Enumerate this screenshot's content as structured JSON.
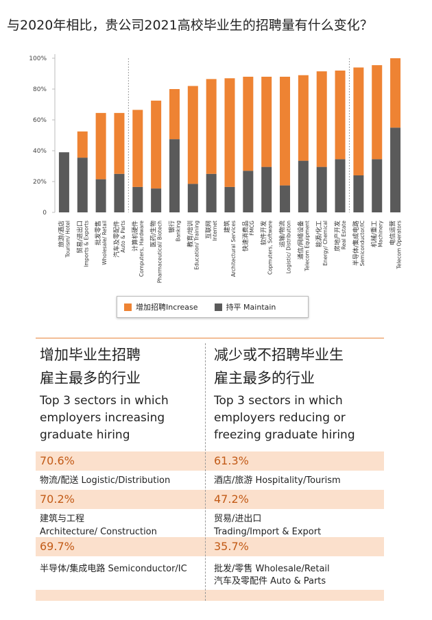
{
  "title": "与2020年相比，贵公司2021高校毕业生的招聘量有什么变化？",
  "legend": {
    "increase": "增加招聘Increase",
    "maintain": "持平 Maintain"
  },
  "colors": {
    "increase": "#ee8333",
    "maintain": "#5a5a5a",
    "accent": "#e8833a",
    "band": "#fbe0cc"
  },
  "chart_data": {
    "type": "bar",
    "stacked": true,
    "ylim": [
      0,
      100
    ],
    "yticks": [
      "0",
      "20%",
      "40%",
      "60%",
      "80%",
      "100%"
    ],
    "categories": [
      [
        "旅游/酒店",
        "Tourism/ Hotel"
      ],
      [
        "贸易/进出口",
        "Imports & Exports"
      ],
      [
        "批发零售",
        "Wholesale/ Retail"
      ],
      [
        "汽车及零配件",
        "Auto & Parts"
      ],
      [
        "计算机硬件",
        "Computers, Hardware"
      ],
      [
        "医药/生物",
        "Pharmaceutical/ Biotech"
      ],
      [
        "银行",
        "Banking"
      ],
      [
        "教育/培训",
        "Education/ Training"
      ],
      [
        "互联网",
        "Internet"
      ],
      [
        "建筑",
        "Architectural Services"
      ],
      [
        "快速消费品",
        "FMCG"
      ],
      [
        "软件开发",
        "Copmuters, Software"
      ],
      [
        "运输/物流",
        "Logistic/ Distribution"
      ],
      [
        "通信/网络设备",
        "Telecom Equipment"
      ],
      [
        "能源/化工",
        "Energy/ Chemical"
      ],
      [
        "房地产开发",
        "Real Estate"
      ],
      [
        "半导体/集成电路",
        "Semiconductor/IC"
      ],
      [
        "机械/重工",
        "Machinery"
      ],
      [
        "电信运营",
        "Telecom Operators"
      ]
    ],
    "series": [
      {
        "name": "持平 Maintain",
        "values": [
          39,
          35.5,
          21.5,
          25,
          16.5,
          15.5,
          47.5,
          18.5,
          25,
          16.5,
          27,
          29.5,
          17.5,
          33.5,
          29.5,
          34.5,
          24,
          34.5,
          55
        ]
      },
      {
        "name": "增加招聘Increase",
        "values": [
          0,
          17,
          43,
          39.5,
          50,
          57,
          32.5,
          63.5,
          61.5,
          70.5,
          61,
          58.5,
          70.5,
          55.5,
          62,
          57.5,
          70,
          61,
          45
        ]
      }
    ],
    "group_separators_after": [
      3,
      15
    ]
  },
  "panel": {
    "left": {
      "heading_cn": [
        "增加毕业生招聘",
        "雇主最多的行业"
      ],
      "heading_en": [
        "Top 3 sectors in which",
        "employers increasing",
        "graduate hiring"
      ],
      "items": [
        {
          "pct": "70.6%",
          "lines": [
            "物流/配送  Logistic/Distribution"
          ]
        },
        {
          "pct": "70.2%",
          "lines": [
            "建筑与工程",
            "Architecture/ Construction"
          ]
        },
        {
          "pct": "69.7%",
          "lines": [
            "半导体/集成电路 Semiconductor/IC"
          ]
        }
      ]
    },
    "right": {
      "heading_cn": [
        "减少或不招聘毕业生",
        "雇主最多的行业"
      ],
      "heading_en": [
        "Top 3 sectors in which",
        "employers reducing or",
        "freezing graduate hiring"
      ],
      "items": [
        {
          "pct": "61.3%",
          "lines": [
            "酒店/旅游  Hospitality/Tourism"
          ]
        },
        {
          "pct": "47.2%",
          "lines": [
            "贸易/进出口",
            "Trading/Import & Export"
          ]
        },
        {
          "pct": "35.7%",
          "lines": [
            "批发/零售 Wholesale/Retail",
            "汽车及零配件 Auto & Parts"
          ]
        }
      ]
    }
  }
}
